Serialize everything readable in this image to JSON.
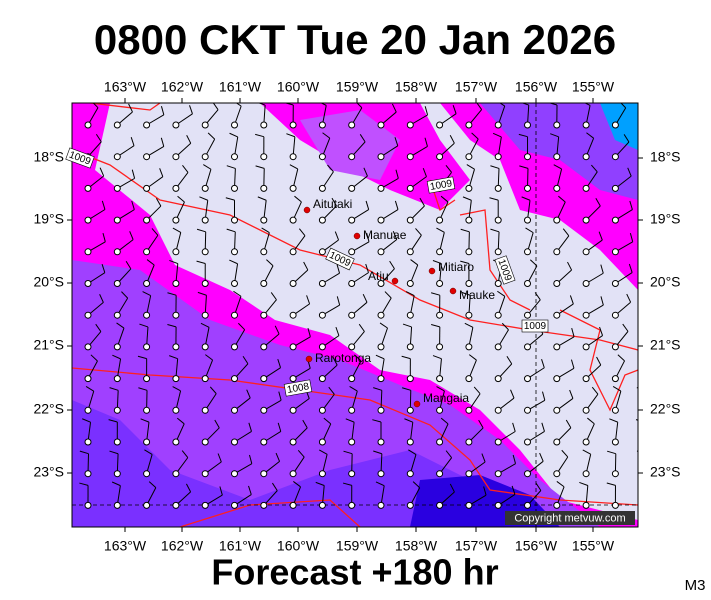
{
  "title": "0800 CKT Tue 20 Jan 2026",
  "longitude_labels": [
    "163°W",
    "162°W",
    "161°W",
    "160°W",
    "159°W",
    "158°W",
    "157°W",
    "156°W",
    "155°W"
  ],
  "latitude_labels": [
    "18°S",
    "19°S",
    "20°S",
    "21°S",
    "22°S",
    "23°S"
  ],
  "places": [
    {
      "label": "Aitutaki"
    },
    {
      "label": "Manuae"
    },
    {
      "label": "Atiu"
    },
    {
      "label": "Mitiaro"
    },
    {
      "label": "Mauke"
    },
    {
      "label": "Rarotonga"
    },
    {
      "label": "Mangaia"
    }
  ],
  "isobar_labels": [
    "1009",
    "1009",
    "1009",
    "1009",
    "1009",
    "1008"
  ],
  "copyright": "Copyright metvuw.com",
  "footer": "Forecast +180 hr",
  "model": "M3"
}
